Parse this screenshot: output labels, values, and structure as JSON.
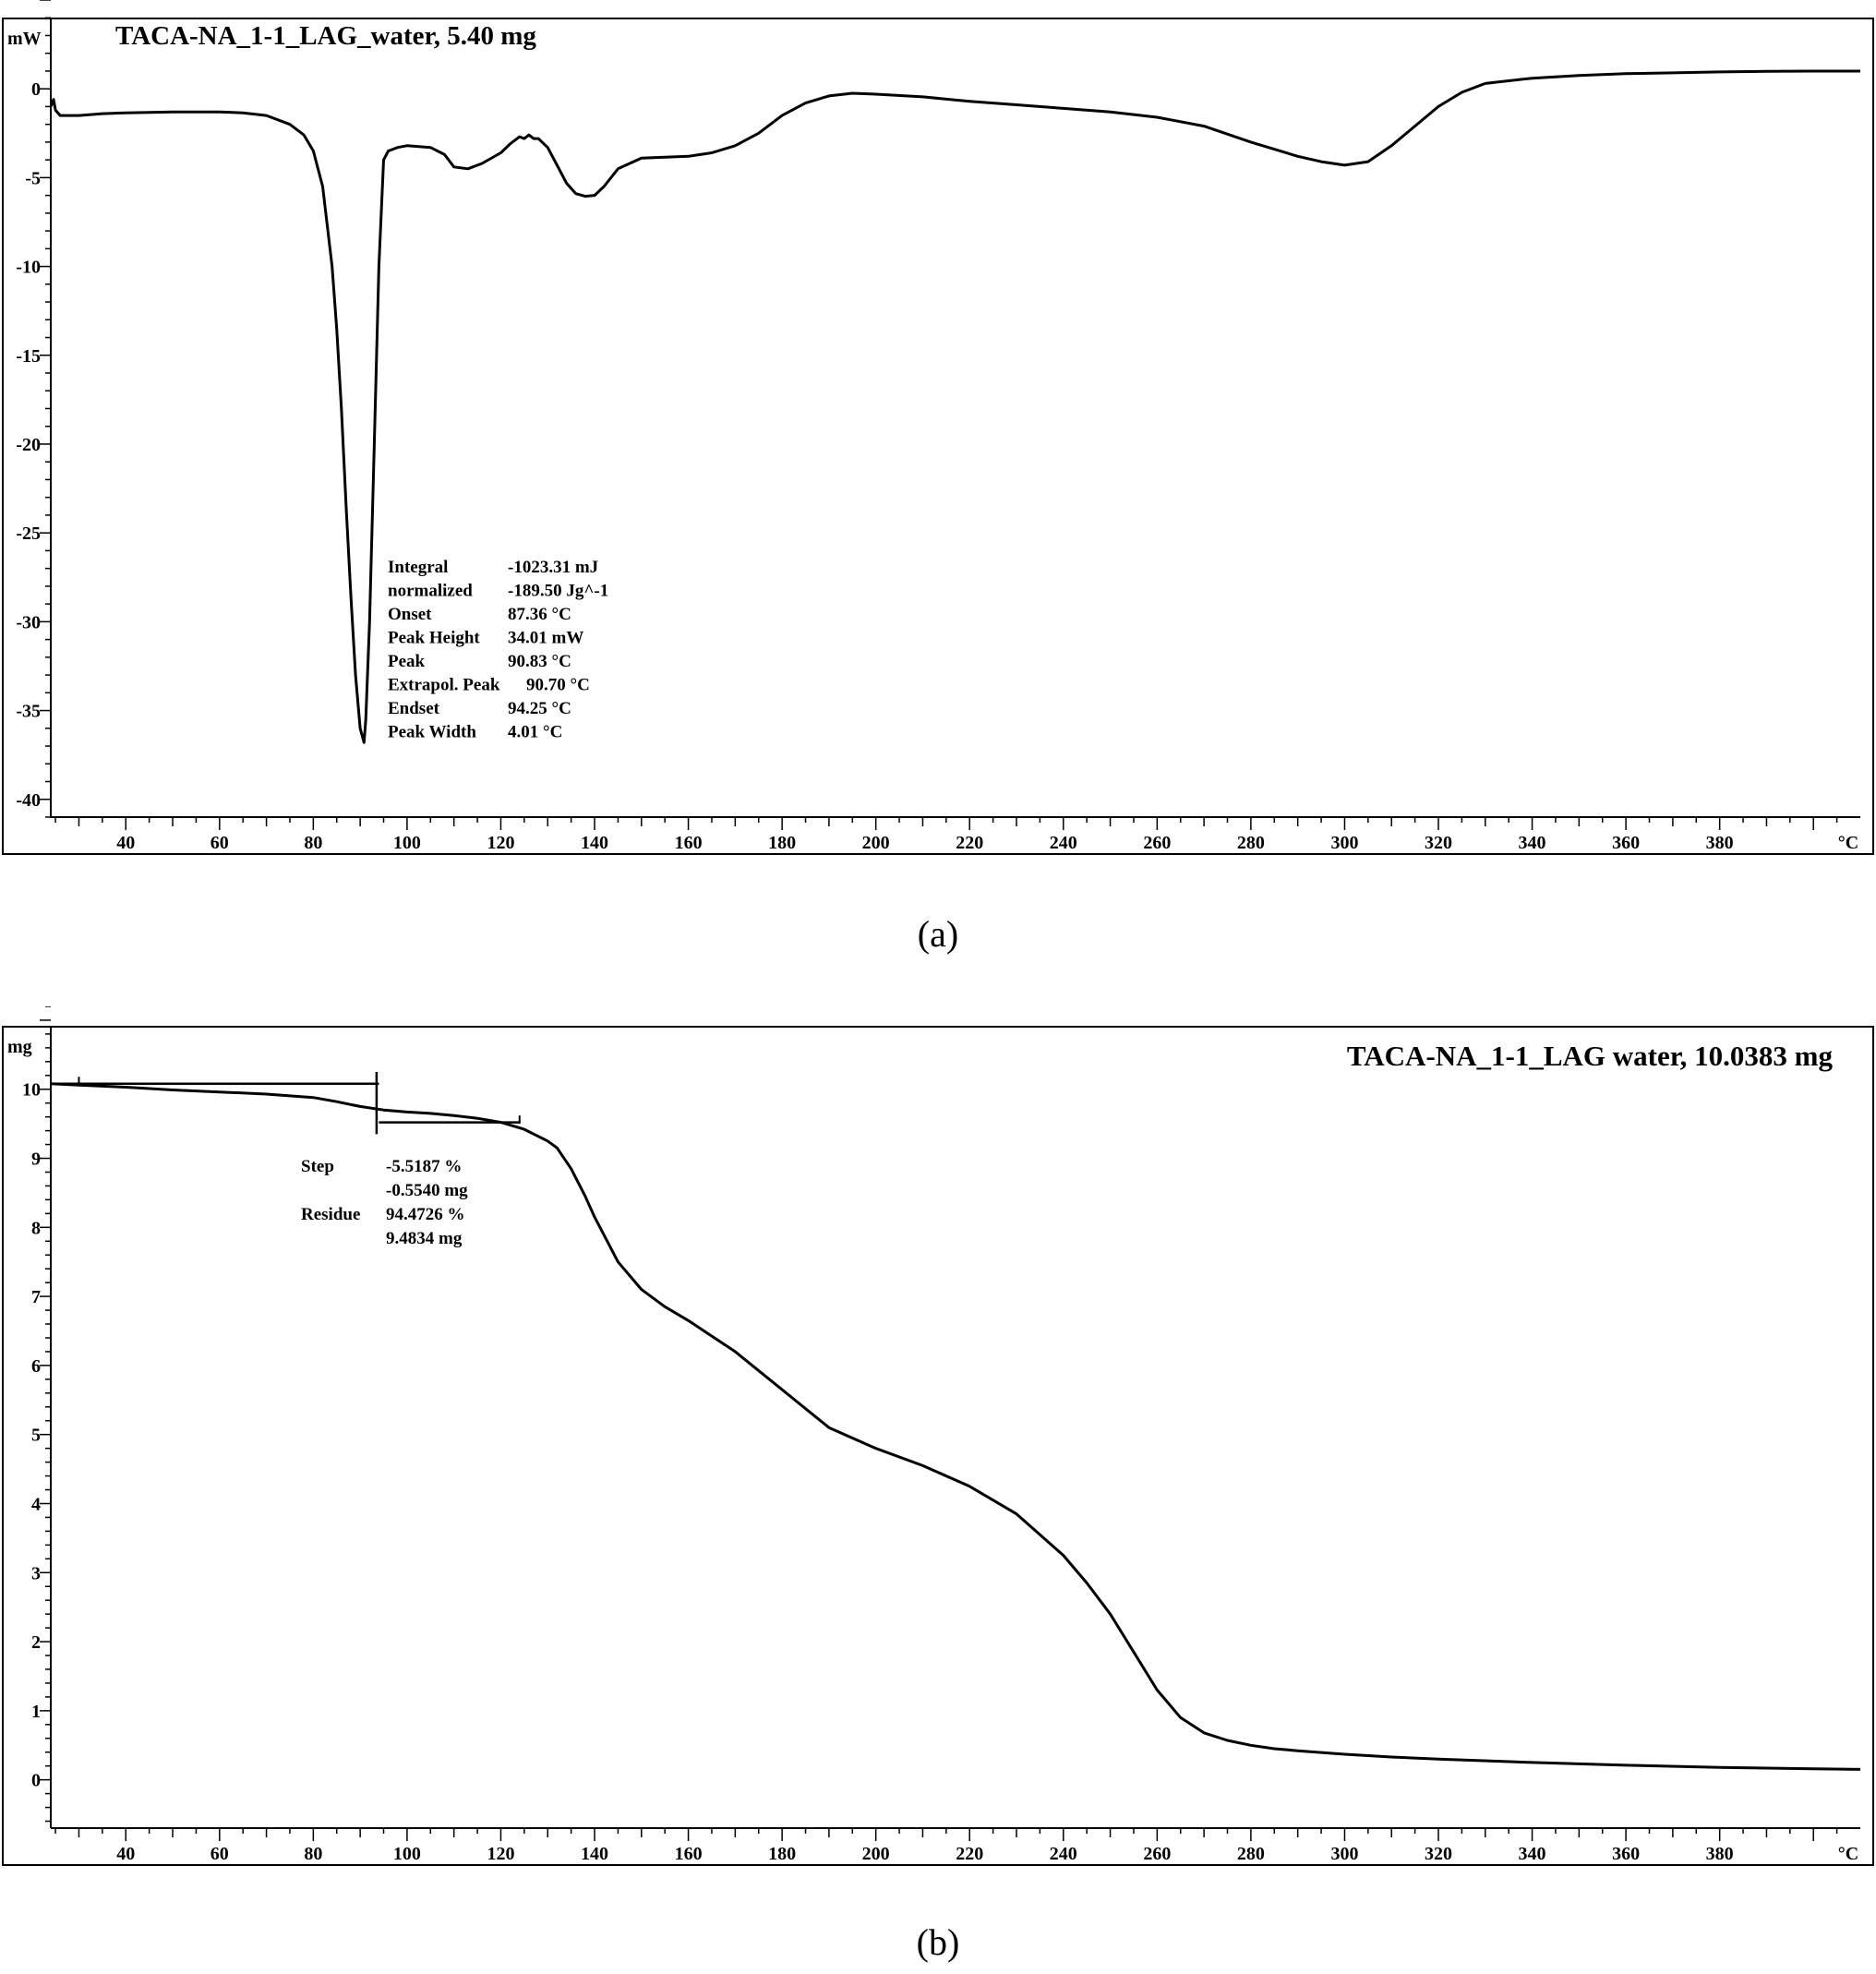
{
  "chart_data": [
    {
      "type": "line",
      "title": "TACA-NA_1-1_LAG_water,  5.40 mg",
      "ylabel": "mW",
      "xlabel": "°C",
      "xlim": [
        24,
        410
      ],
      "ylim": [
        -41,
        5
      ],
      "xticks": [
        "40",
        "60",
        "80",
        "100",
        "120",
        "140",
        "160",
        "180",
        "200",
        "220",
        "240",
        "260",
        "280",
        "300",
        "320",
        "340",
        "360",
        "380"
      ],
      "yticks": [
        "0",
        "-5",
        "-10",
        "-15",
        "-20",
        "-25",
        "-30",
        "-35",
        "-40"
      ],
      "grid": false,
      "series": [
        {
          "x": [
            24.0,
            24.6,
            25,
            26,
            28,
            30,
            35,
            40,
            50,
            60,
            65,
            70,
            75,
            78,
            80,
            82,
            84,
            85,
            86,
            87,
            88,
            89,
            90,
            90.5,
            90.83,
            91.2,
            92,
            93,
            94,
            95,
            96,
            97,
            98,
            100,
            105,
            108,
            110,
            113,
            116,
            120,
            122,
            124,
            125,
            126,
            127,
            128,
            130,
            132,
            134,
            136,
            138,
            140,
            142,
            145,
            150,
            155,
            160,
            165,
            170,
            175,
            180,
            185,
            190,
            195,
            200,
            210,
            220,
            230,
            240,
            250,
            260,
            270,
            280,
            290,
            295,
            300,
            305,
            310,
            315,
            320,
            325,
            330,
            340,
            350,
            360,
            370,
            380,
            390,
            400,
            410
          ],
          "y": [
            -1.0,
            -0.6,
            -1.2,
            -1.5,
            -1.5,
            -1.5,
            -1.4,
            -1.35,
            -1.3,
            -1.3,
            -1.35,
            -1.5,
            -2.0,
            -2.6,
            -3.5,
            -5.5,
            -10.0,
            -13.5,
            -18.0,
            -23.5,
            -28.5,
            -33.0,
            -36.0,
            -36.5,
            -36.8,
            -35.5,
            -30.0,
            -20.0,
            -10.0,
            -4.0,
            -3.5,
            -3.4,
            -3.3,
            -3.2,
            -3.3,
            -3.7,
            -4.4,
            -4.5,
            -4.2,
            -3.6,
            -3.1,
            -2.7,
            -2.8,
            -2.6,
            -2.8,
            -2.8,
            -3.3,
            -4.3,
            -5.3,
            -5.9,
            -6.05,
            -6.0,
            -5.5,
            -4.5,
            -3.9,
            -3.85,
            -3.8,
            -3.6,
            -3.2,
            -2.5,
            -1.5,
            -0.8,
            -0.4,
            -0.25,
            -0.3,
            -0.45,
            -0.7,
            -0.9,
            -1.1,
            -1.3,
            -1.6,
            -2.1,
            -3.0,
            -3.8,
            -4.1,
            -4.3,
            -4.1,
            -3.2,
            -2.1,
            -1.0,
            -0.2,
            0.3,
            0.6,
            0.75,
            0.85,
            0.9,
            0.95,
            0.98,
            1.0,
            1.0
          ]
        }
      ],
      "annotations": [
        {
          "label": "Integral",
          "value": "-1023.31 mJ"
        },
        {
          "label": "  normalized",
          "value": "-189.50 Jg^-1"
        },
        {
          "label": "Onset",
          "value": "87.36 °C"
        },
        {
          "label": "Peak Height",
          "value": "34.01 mW"
        },
        {
          "label": "Peak",
          "value": "90.83 °C"
        },
        {
          "label": "Extrapol. Peak",
          "value": "90.70 °C"
        },
        {
          "label": "Endset",
          "value": "94.25 °C"
        },
        {
          "label": "Peak Width",
          "value": "4.01 °C"
        }
      ]
    },
    {
      "type": "line",
      "title": "TACA-NA_1-1_LAG water,  10.0383 mg",
      "ylabel": "mg",
      "xlabel": "°C",
      "xlim": [
        24,
        410
      ],
      "ylim": [
        -0.7,
        11.2
      ],
      "xticks": [
        "40",
        "60",
        "80",
        "100",
        "120",
        "140",
        "160",
        "180",
        "200",
        "220",
        "240",
        "260",
        "280",
        "300",
        "320",
        "340",
        "360",
        "380"
      ],
      "yticks": [
        "10",
        "9",
        "8",
        "7",
        "6",
        "5",
        "4",
        "3",
        "2",
        "1",
        "0"
      ],
      "grid": false,
      "series": [
        {
          "x": [
            24,
            30,
            40,
            50,
            60,
            70,
            80,
            85,
            90,
            95,
            100,
            105,
            110,
            115,
            120,
            125,
            130,
            132,
            135,
            138,
            140,
            145,
            150,
            155,
            160,
            170,
            180,
            190,
            200,
            210,
            220,
            230,
            240,
            245,
            250,
            255,
            260,
            265,
            270,
            275,
            280,
            285,
            290,
            300,
            310,
            320,
            340,
            360,
            380,
            400,
            410
          ],
          "y": [
            10.08,
            10.06,
            10.03,
            9.99,
            9.96,
            9.93,
            9.88,
            9.82,
            9.75,
            9.7,
            9.67,
            9.65,
            9.62,
            9.58,
            9.52,
            9.42,
            9.25,
            9.15,
            8.85,
            8.45,
            8.15,
            7.5,
            7.1,
            6.85,
            6.65,
            6.2,
            5.65,
            5.1,
            4.8,
            4.55,
            4.25,
            3.85,
            3.25,
            2.85,
            2.4,
            1.85,
            1.3,
            0.9,
            0.68,
            0.57,
            0.5,
            0.45,
            0.42,
            0.37,
            0.33,
            0.3,
            0.25,
            0.21,
            0.18,
            0.16,
            0.15
          ]
        }
      ],
      "annotations": [
        {
          "label": "Step",
          "value": "-5.5187 %"
        },
        {
          "label": "",
          "value": "-0.5540 mg"
        },
        {
          "label": "Residue",
          "value": "94.4726 %"
        },
        {
          "label": "",
          "value": "9.4834 mg"
        }
      ]
    }
  ],
  "captions": {
    "a": "(a)",
    "b": "(b)"
  }
}
